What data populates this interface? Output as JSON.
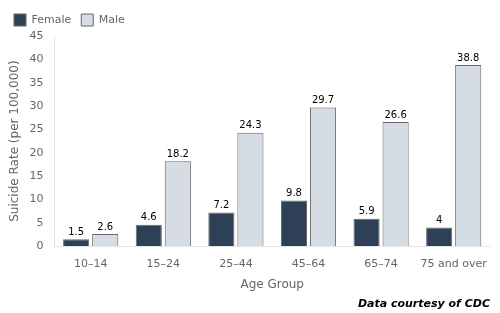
{
  "chart_data": {
    "type": "bar",
    "categories": [
      "10–14",
      "15–24",
      "25–44",
      "45–64",
      "65–74",
      "75 and over"
    ],
    "series": [
      {
        "name": "Female",
        "color": "#2e4057",
        "values": [
          1.5,
          4.6,
          7.2,
          9.8,
          5.9,
          4.0
        ]
      },
      {
        "name": "Male",
        "color": "#d6dce4",
        "values": [
          2.6,
          18.2,
          24.3,
          29.7,
          26.6,
          38.8
        ]
      }
    ],
    "xlabel": "Age Group",
    "ylabel": "Suicide Rate (per 100,000)",
    "ylim": [
      0,
      45
    ],
    "yticks": [
      0,
      5,
      10,
      15,
      20,
      25,
      30,
      35,
      40,
      45
    ],
    "annotation": "Data courtesy of CDC",
    "data_labels": true,
    "legend": "upper left",
    "grid": false
  }
}
